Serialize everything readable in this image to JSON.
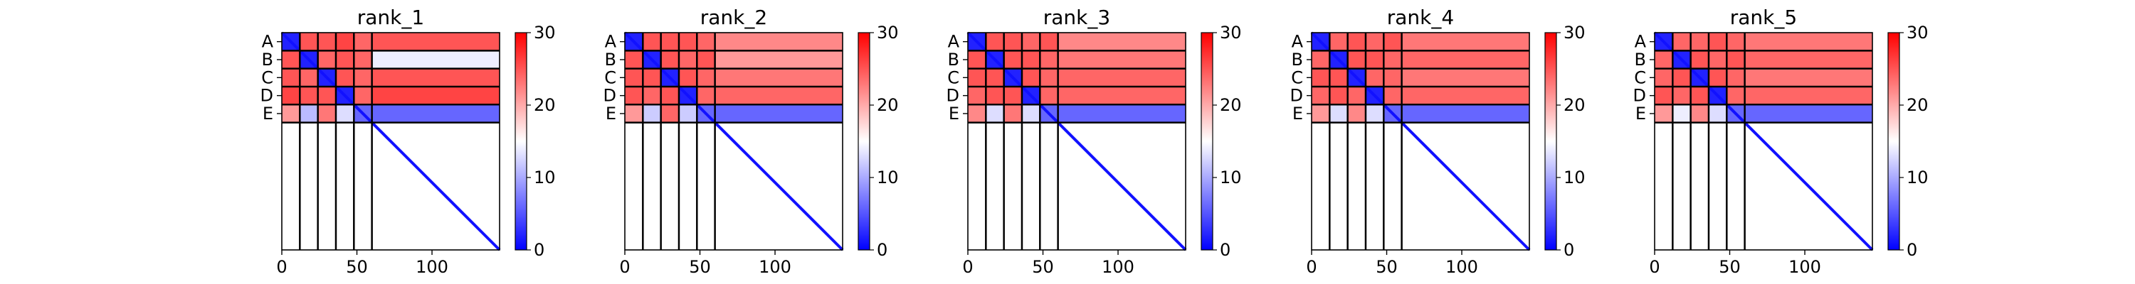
{
  "chart_data": [
    {
      "type": "heatmap",
      "title": "rank_1",
      "chain_labels": [
        "A",
        "B",
        "C",
        "D",
        "E"
      ],
      "chain_boundaries": [
        0,
        12,
        24,
        36,
        48,
        60,
        145
      ],
      "x_ticks": [
        0,
        50,
        100
      ],
      "x_tick_labels": [
        "0",
        "50",
        "100"
      ],
      "x_range": [
        0,
        145
      ],
      "colorbar": {
        "ticks": [
          0,
          10,
          20,
          30
        ],
        "tick_labels": [
          "0",
          "10",
          "20",
          "30"
        ],
        "range": [
          0,
          30
        ],
        "colormap": [
          "#0000ff",
          "#ffffff",
          "#ff0000"
        ]
      },
      "block_levels": {
        "A": [
          2,
          25,
          25,
          26,
          24,
          25
        ],
        "B": [
          25,
          2,
          24,
          25,
          24,
          14
        ],
        "C": [
          25,
          24,
          2,
          25,
          24,
          25
        ],
        "D": [
          26,
          25,
          25,
          2,
          24,
          26
        ],
        "E": [
          21,
          11,
          23,
          13,
          6
        ]
      }
    },
    {
      "type": "heatmap",
      "title": "rank_2",
      "chain_labels": [
        "A",
        "B",
        "C",
        "D",
        "E"
      ],
      "chain_boundaries": [
        0,
        12,
        24,
        36,
        48,
        60,
        145
      ],
      "x_ticks": [
        0,
        50,
        100
      ],
      "x_tick_labels": [
        "0",
        "50",
        "100"
      ],
      "x_range": [
        0,
        145
      ],
      "colorbar": {
        "ticks": [
          0,
          10,
          20,
          30
        ],
        "tick_labels": [
          "0",
          "10",
          "20",
          "30"
        ],
        "range": [
          0,
          30
        ],
        "colormap": [
          "#0000ff",
          "#ffffff",
          "#ff0000"
        ]
      },
      "block_levels": {
        "A": [
          2,
          25,
          25,
          25,
          24,
          22
        ],
        "B": [
          25,
          2,
          25,
          24,
          25,
          21
        ],
        "C": [
          25,
          25,
          2,
          25,
          24,
          23
        ],
        "D": [
          25,
          24,
          25,
          2,
          24,
          24
        ],
        "E": [
          21,
          12,
          24,
          12,
          6
        ]
      }
    },
    {
      "type": "heatmap",
      "title": "rank_3",
      "chain_labels": [
        "A",
        "B",
        "C",
        "D",
        "E"
      ],
      "chain_boundaries": [
        0,
        12,
        24,
        36,
        48,
        60,
        145
      ],
      "x_ticks": [
        0,
        50,
        100
      ],
      "x_tick_labels": [
        "0",
        "50",
        "100"
      ],
      "x_range": [
        0,
        145
      ],
      "colorbar": {
        "ticks": [
          0,
          10,
          20,
          30
        ],
        "tick_labels": [
          "0",
          "10",
          "20",
          "30"
        ],
        "range": [
          0,
          30
        ],
        "colormap": [
          "#0000ff",
          "#ffffff",
          "#ff0000"
        ]
      },
      "block_levels": {
        "A": [
          2,
          25,
          25,
          24,
          25,
          22
        ],
        "B": [
          25,
          2,
          25,
          25,
          24,
          23
        ],
        "C": [
          25,
          25,
          2,
          25,
          24,
          24
        ],
        "D": [
          24,
          25,
          25,
          2,
          24,
          24
        ],
        "E": [
          22,
          13,
          23,
          13,
          6
        ]
      }
    },
    {
      "type": "heatmap",
      "title": "rank_4",
      "chain_labels": [
        "A",
        "B",
        "C",
        "D",
        "E"
      ],
      "chain_boundaries": [
        0,
        12,
        24,
        36,
        48,
        60,
        145
      ],
      "x_ticks": [
        0,
        50,
        100
      ],
      "x_tick_labels": [
        "0",
        "50",
        "100"
      ],
      "x_range": [
        0,
        145
      ],
      "colorbar": {
        "ticks": [
          0,
          10,
          20,
          30
        ],
        "tick_labels": [
          "0",
          "10",
          "20",
          "30"
        ],
        "range": [
          0,
          30
        ],
        "colormap": [
          "#0000ff",
          "#ffffff",
          "#ff0000"
        ]
      },
      "block_levels": {
        "A": [
          2,
          24,
          25,
          24,
          25,
          23
        ],
        "B": [
          24,
          2,
          25,
          25,
          24,
          24
        ],
        "C": [
          25,
          25,
          2,
          24,
          24,
          23
        ],
        "D": [
          24,
          25,
          24,
          2,
          24,
          24
        ],
        "E": [
          21,
          13,
          22,
          13,
          6
        ]
      }
    },
    {
      "type": "heatmap",
      "title": "rank_5",
      "chain_labels": [
        "A",
        "B",
        "C",
        "D",
        "E"
      ],
      "chain_boundaries": [
        0,
        12,
        24,
        36,
        48,
        60,
        145
      ],
      "x_ticks": [
        0,
        50,
        100
      ],
      "x_tick_labels": [
        "0",
        "50",
        "100"
      ],
      "x_range": [
        0,
        145
      ],
      "colorbar": {
        "ticks": [
          0,
          10,
          20,
          30
        ],
        "tick_labels": [
          "0",
          "10",
          "20",
          "30"
        ],
        "range": [
          0,
          30
        ],
        "colormap": [
          "#0000ff",
          "#ffffff",
          "#ff0000"
        ]
      },
      "block_levels": {
        "A": [
          2,
          24,
          24,
          25,
          24,
          23
        ],
        "B": [
          24,
          2,
          25,
          24,
          25,
          24
        ],
        "C": [
          24,
          25,
          2,
          25,
          24,
          23
        ],
        "D": [
          25,
          24,
          25,
          2,
          24,
          24
        ],
        "E": [
          21,
          14,
          22,
          13,
          6
        ]
      }
    }
  ]
}
